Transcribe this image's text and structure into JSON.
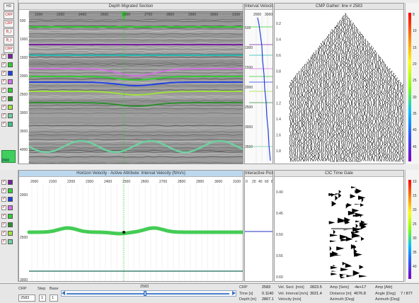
{
  "left_toolbar": {
    "top_buttons": [
      "HD",
      "CRP",
      "CRP",
      "B_t",
      "B_t",
      "CRP"
    ],
    "horizon_colors": [
      "#7a1fa2",
      "#33cc33",
      "#2040e0",
      "#d070e0",
      "#33cc33",
      "#2f8f2f",
      "#a0e040",
      "#6fd0a0",
      "#40c080"
    ],
    "bottom_colors": [
      "#7a1fa2",
      "#33cc33",
      "#2040e0",
      "#d070e0",
      "#33cc33",
      "#2f8f2f",
      "#a0e040",
      "#6fd0a0"
    ],
    "foot_label": "2000"
  },
  "depth_section": {
    "title": "Depth Migrated Section",
    "depth_ticks": [
      "500",
      "1000",
      "1500",
      "2000",
      "2500",
      "3000",
      "3500",
      "4000"
    ],
    "cdp_ticks": [
      "2200",
      "2300",
      "2400",
      "2500",
      "2600",
      "2700",
      "2800",
      "2900",
      "3000",
      "3100"
    ],
    "horizon_colors": [
      "#33cc33",
      "#7a1fa2",
      "#22b8b0",
      "#d070e0",
      "#33cc33",
      "#2040e0",
      "#a0e040",
      "#2f8f2f",
      "#6fd0a0"
    ]
  },
  "interval_velocity": {
    "title": "Interval Velocity",
    "x_ticks": [
      "2000",
      "3000"
    ],
    "depth_ticks": [
      "500",
      "1000",
      "1500",
      "2000",
      "2500",
      "3000",
      "3500"
    ]
  },
  "cmp_gather": {
    "title": "CMP Gather: line # 2583",
    "time_ticks": [
      "0.2",
      "0.4",
      "0.6",
      "0.8",
      "1",
      "1.2",
      "1.4",
      "1.6",
      "1.8"
    ]
  },
  "colorbar": {
    "top_ticks": [
      "8",
      "10",
      "15",
      "20",
      "25",
      "30",
      "35",
      "40",
      "45"
    ],
    "bottom_ticks": [
      "10",
      "15",
      "20",
      "25",
      "30",
      "35",
      "40"
    ]
  },
  "horizon_velocity": {
    "title": "Horizon Velocity · Active Attribute: Interval Velocity (ft/m/s)",
    "y_ticks": [
      "2000",
      "2500",
      "3000"
    ],
    "x_ticks": [
      "2000",
      "2100",
      "2200",
      "2300",
      "2400",
      "2500",
      "2600",
      "2700",
      "2800",
      "2900",
      "3000",
      "3100"
    ]
  },
  "interactive_picking": {
    "title": "Interactive Picking",
    "x_ticks": [
      "0",
      "20",
      "40",
      "60",
      "80"
    ]
  },
  "cic_time_gate": {
    "title": "CIC Time Gate",
    "time_ticks": [
      "0.40",
      "0.45",
      "0.50",
      "0.55",
      "0.60"
    ]
  },
  "status_bar": {
    "crp_label": "CRP",
    "crp_value": "2583",
    "step_label": "Step",
    "step_value": "1",
    "base_label": "Base",
    "base_value": "1",
    "slider_value": "2583",
    "crp2_label": "CRP",
    "crp2_value": "2583",
    "time_label": "Time [s]",
    "time_value": "0.1140",
    "depth_label": "Depth [m]",
    "depth_value": "2867.1",
    "vel_sect_label": "Vel. Sect. [m/s]",
    "vel_sect_value": "2823.5",
    "vel_interval_label": "Vel. Interval [m/s]",
    "vel_interval_value": "3021.4",
    "velocity_label": "Velocity [m/s]",
    "amp_sets_label": "Amp [Sets]",
    "amp_sets_value": "-4e+17",
    "distance_label": "Distance [m]",
    "distance_value": "4076.8",
    "azimuth_label": "Azimuth [Deg]",
    "amp_attr_label": "Amp [Attr]",
    "angle_label": "Angle [Deg]",
    "azimuth2_label": "Azimuth [Deg]",
    "right_value": "7 / 877"
  }
}
